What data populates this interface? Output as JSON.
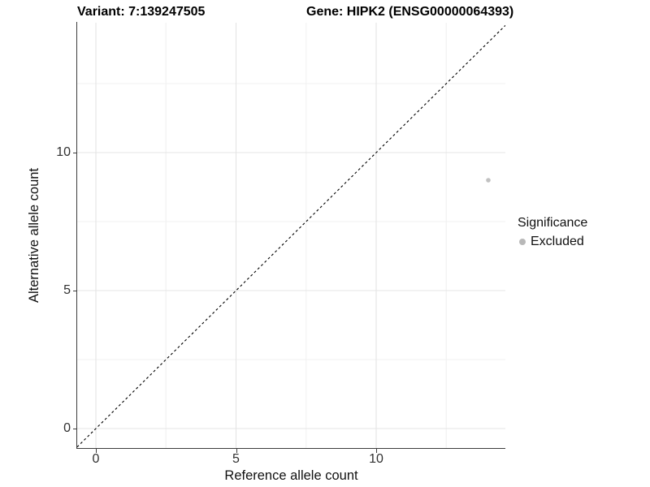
{
  "chart_data": {
    "type": "scatter",
    "title_variant": "Variant: 7:139247505",
    "title_gene": "Gene: HIPK2 (ENSG00000064393)",
    "xlabel": "Reference allele count",
    "ylabel": "Alternative allele count",
    "xlim": [
      -0.7,
      14.7
    ],
    "ylim": [
      -0.7,
      14.7
    ],
    "xticks": [
      0,
      5,
      10
    ],
    "yticks": [
      0,
      5,
      10
    ],
    "xticks_minor": [
      2.5,
      7.5,
      12.5
    ],
    "yticks_minor": [
      2.5,
      7.5,
      12.5
    ],
    "grid": true,
    "series": [
      {
        "name": "Excluded",
        "color": "#c1c1c1",
        "point_radius": 2.8,
        "points": [
          {
            "x": 14,
            "y": 9
          }
        ]
      }
    ],
    "reference_line": {
      "type": "identity",
      "style": "dashed",
      "color": "#000000",
      "from": [
        -0.67,
        -0.67
      ],
      "to": [
        14.61,
        14.61
      ]
    },
    "legend": {
      "title": "Significance",
      "position": "right",
      "entries": [
        {
          "label": "Excluded",
          "color": "#b8b8b8"
        }
      ]
    },
    "colors": {
      "grid_major": "#e4e4e4",
      "grid_minor": "#f1f1f1",
      "axis_line": "#3c3c3c",
      "tick_text": "#303030"
    }
  }
}
